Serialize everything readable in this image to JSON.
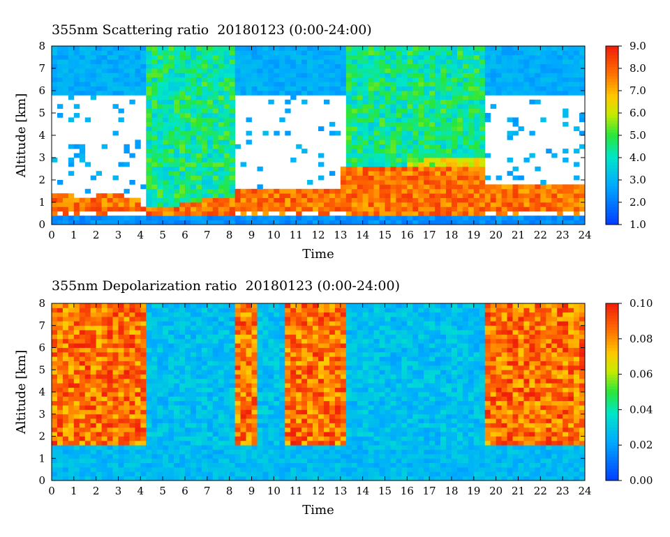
{
  "chart_data": [
    {
      "type": "heatmap",
      "title": "355nm Scattering ratio  20180123 (0:00-24:00)",
      "xlabel": "Time",
      "ylabel": "Altitude [km]",
      "xlim": [
        0,
        24
      ],
      "ylim": [
        0,
        8
      ],
      "x_ticks": [
        "0",
        "1",
        "2",
        "3",
        "4",
        "5",
        "6",
        "7",
        "8",
        "9",
        "10",
        "11",
        "12",
        "13",
        "14",
        "15",
        "16",
        "17",
        "18",
        "19",
        "20",
        "21",
        "22",
        "23",
        "24"
      ],
      "y_ticks": [
        "0",
        "1",
        "2",
        "3",
        "4",
        "5",
        "6",
        "7",
        "8"
      ],
      "colorbar": {
        "range": [
          1.0,
          9.0
        ],
        "ticks": [
          "1.0",
          "2.0",
          "3.0",
          "4.0",
          "5.0",
          "6.0",
          "7.0",
          "8.0",
          "9.0"
        ]
      }
    },
    {
      "type": "heatmap",
      "title": "355nm Depolarization ratio  20180123 (0:00-24:00)",
      "xlabel": "Time",
      "ylabel": "Altitude [km]",
      "xlim": [
        0,
        24
      ],
      "ylim": [
        0,
        8
      ],
      "x_ticks": [
        "0",
        "1",
        "2",
        "3",
        "4",
        "5",
        "6",
        "7",
        "8",
        "9",
        "10",
        "11",
        "12",
        "13",
        "14",
        "15",
        "16",
        "17",
        "18",
        "19",
        "20",
        "21",
        "22",
        "23",
        "24"
      ],
      "y_ticks": [
        "0",
        "1",
        "2",
        "3",
        "4",
        "5",
        "6",
        "7",
        "8"
      ],
      "colorbar": {
        "range": [
          0.0,
          0.1
        ],
        "ticks": [
          "0.00",
          "0.02",
          "0.04",
          "0.06",
          "0.08",
          "0.10"
        ]
      }
    }
  ]
}
